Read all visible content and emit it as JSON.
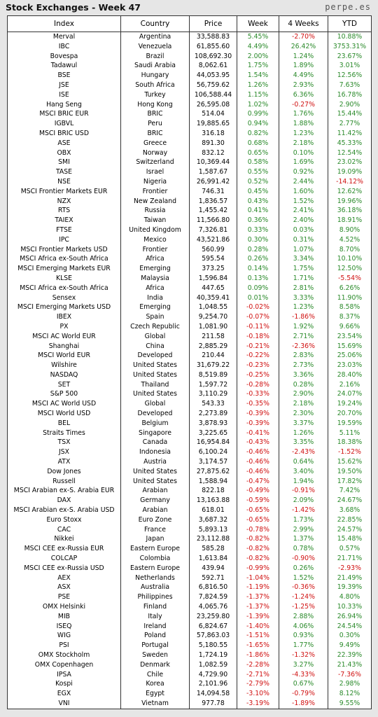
{
  "header": {
    "title": "Stock Exchanges - Week 47",
    "site": "perpe.es"
  },
  "table": {
    "columns": [
      "Index",
      "Country",
      "Price",
      "Week",
      "4 Weeks",
      "YTD"
    ],
    "rows": [
      [
        "Merval",
        "Argentina",
        "33,588.83",
        "5.45%",
        "-2.70%",
        "10.88%"
      ],
      [
        "IBC",
        "Venezuela",
        "61,855.60",
        "4.49%",
        "26.42%",
        "3753.31%"
      ],
      [
        "Bovespa",
        "Brazil",
        "108,692.30",
        "2.00%",
        "1.24%",
        "23.67%"
      ],
      [
        "Tadawul",
        "Saudi Arabia",
        "8,062.61",
        "1.75%",
        "1.89%",
        "3.01%"
      ],
      [
        "BSE",
        "Hungary",
        "44,053.95",
        "1.54%",
        "4.49%",
        "12.56%"
      ],
      [
        "JSE",
        "South Africa",
        "56,759.62",
        "1.26%",
        "2.93%",
        "7.63%"
      ],
      [
        "ISE",
        "Turkey",
        "106,588.44",
        "1.15%",
        "6.36%",
        "16.78%"
      ],
      [
        "Hang Seng",
        "Hong Kong",
        "26,595.08",
        "1.02%",
        "-0.27%",
        "2.90%"
      ],
      [
        "MSCI BRIC EUR",
        "BRIC",
        "514.04",
        "0.99%",
        "1.76%",
        "15.44%"
      ],
      [
        "IGBVL",
        "Peru",
        "19,885.65",
        "0.94%",
        "1.88%",
        "2.77%"
      ],
      [
        "MSCI BRIC USD",
        "BRIC",
        "316.18",
        "0.82%",
        "1.23%",
        "11.42%"
      ],
      [
        "ASE",
        "Greece",
        "891.30",
        "0.68%",
        "2.18%",
        "45.33%"
      ],
      [
        "OBX",
        "Norway",
        "832.12",
        "0.65%",
        "0.10%",
        "12.54%"
      ],
      [
        "SMI",
        "Switzerland",
        "10,369.44",
        "0.58%",
        "1.69%",
        "23.02%"
      ],
      [
        "TASE",
        "Israel",
        "1,587.67",
        "0.55%",
        "0.92%",
        "19.09%"
      ],
      [
        "NSE",
        "Nigeria",
        "26,991.42",
        "0.52%",
        "2.44%",
        "-14.12%"
      ],
      [
        "MSCI Frontier Markets EUR",
        "Frontier",
        "746.31",
        "0.45%",
        "1.60%",
        "12.62%"
      ],
      [
        "NZX",
        "New Zealand",
        "1,836.57",
        "0.43%",
        "1.52%",
        "19.96%"
      ],
      [
        "RTS",
        "Russia",
        "1,455.42",
        "0.41%",
        "2.41%",
        "36.18%"
      ],
      [
        "TAIEX",
        "Taiwan",
        "11,566.80",
        "0.36%",
        "2.40%",
        "18.91%"
      ],
      [
        "FTSE",
        "United Kingdom",
        "7,326.81",
        "0.33%",
        "0.03%",
        "8.90%"
      ],
      [
        "IPC",
        "Mexico",
        "43,521.86",
        "0.30%",
        "0.31%",
        "4.52%"
      ],
      [
        "MSCI Frontier Markets USD",
        "Frontier",
        "560.99",
        "0.28%",
        "1.07%",
        "8.70%"
      ],
      [
        "MSCI Africa ex-South Africa",
        "Africa",
        "595.54",
        "0.26%",
        "3.34%",
        "10.10%"
      ],
      [
        "MSCI Emerging Markets EUR",
        "Emerging",
        "373.25",
        "0.14%",
        "1.75%",
        "12.50%"
      ],
      [
        "KLSE",
        "Malaysia",
        "1,596.84",
        "0.13%",
        "1.71%",
        "-5.54%"
      ],
      [
        "MSCI Africa ex-South Africa",
        "Africa",
        "447.65",
        "0.09%",
        "2.81%",
        "6.26%"
      ],
      [
        "Sensex",
        "India",
        "40,359.41",
        "0.01%",
        "3.33%",
        "11.90%"
      ],
      [
        "MSCI Emerging Markets USD",
        "Emerging",
        "1,048.55",
        "-0.02%",
        "1.23%",
        "8.58%"
      ],
      [
        "IBEX",
        "Spain",
        "9,254.70",
        "-0.07%",
        "-1.86%",
        "8.37%"
      ],
      [
        "PX",
        "Czech Republic",
        "1,081.90",
        "-0.11%",
        "1.92%",
        "9.66%"
      ],
      [
        "MSCI AC World EUR",
        "Global",
        "211.58",
        "-0.18%",
        "2.71%",
        "23.54%"
      ],
      [
        "Shanghai",
        "China",
        "2,885.29",
        "-0.21%",
        "-2.36%",
        "15.69%"
      ],
      [
        "MSCI World EUR",
        "Developed",
        "210.44",
        "-0.22%",
        "2.83%",
        "25.06%"
      ],
      [
        "Wilshire",
        "United States",
        "31,679.22",
        "-0.23%",
        "2.73%",
        "23.03%"
      ],
      [
        "NASDAQ",
        "United States",
        "8,519.89",
        "-0.25%",
        "3.36%",
        "28.40%"
      ],
      [
        "SET",
        "Thailand",
        "1,597.72",
        "-0.28%",
        "0.28%",
        "2.16%"
      ],
      [
        "S&P 500",
        "United States",
        "3,110.29",
        "-0.33%",
        "2.90%",
        "24.07%"
      ],
      [
        "MSCI AC World USD",
        "Global",
        "543.33",
        "-0.35%",
        "2.18%",
        "19.24%"
      ],
      [
        "MSCI World USD",
        "Developed",
        "2,273.89",
        "-0.39%",
        "2.30%",
        "20.70%"
      ],
      [
        "BEL",
        "Belgium",
        "3,878.93",
        "-0.39%",
        "3.37%",
        "19.59%"
      ],
      [
        "Straits Times",
        "Singapore",
        "3,225.65",
        "-0.41%",
        "1.26%",
        "5.11%"
      ],
      [
        "TSX",
        "Canada",
        "16,954.84",
        "-0.43%",
        "3.35%",
        "18.38%"
      ],
      [
        "JSX",
        "Indonesia",
        "6,100.24",
        "-0.46%",
        "-2.43%",
        "-1.52%"
      ],
      [
        "ATX",
        "Austria",
        "3,174.57",
        "-0.46%",
        "0.64%",
        "15.62%"
      ],
      [
        "Dow Jones",
        "United States",
        "27,875.62",
        "-0.46%",
        "3.40%",
        "19.50%"
      ],
      [
        "Russell",
        "United States",
        "1,588.94",
        "-0.47%",
        "1.94%",
        "17.82%"
      ],
      [
        "MSCI Arabian ex-S. Arabia EUR",
        "Arabian",
        "822.18",
        "-0.49%",
        "-0.91%",
        "7.42%"
      ],
      [
        "DAX",
        "Germany",
        "13,163.88",
        "-0.59%",
        "2.09%",
        "24.67%"
      ],
      [
        "MSCI Arabian ex-S. Arabia USD",
        "Arabian",
        "618.01",
        "-0.65%",
        "-1.42%",
        "3.68%"
      ],
      [
        "Euro Stoxx",
        "Euro Zone",
        "3,687.32",
        "-0.65%",
        "1.73%",
        "22.85%"
      ],
      [
        "CAC",
        "France",
        "5,893.13",
        "-0.78%",
        "2.99%",
        "24.57%"
      ],
      [
        "Nikkei",
        "Japan",
        "23,112.88",
        "-0.82%",
        "1.37%",
        "15.48%"
      ],
      [
        "MSCI CEE ex-Russia EUR",
        "Eastern Europe",
        "585.28",
        "-0.82%",
        "0.78%",
        "0.57%"
      ],
      [
        "COLCAP",
        "Colombia",
        "1,613.84",
        "-0.82%",
        "-0.90%",
        "21.71%"
      ],
      [
        "MSCI CEE ex-Russia USD",
        "Eastern Europe",
        "439.94",
        "-0.99%",
        "0.26%",
        "-2.93%"
      ],
      [
        "AEX",
        "Netherlands",
        "592.71",
        "-1.04%",
        "1.52%",
        "21.49%"
      ],
      [
        "ASX",
        "Australia",
        "6,816.50",
        "-1.19%",
        "-0.36%",
        "19.39%"
      ],
      [
        "PSE",
        "Philippines",
        "7,824.59",
        "-1.37%",
        "-1.24%",
        "4.80%"
      ],
      [
        "OMX Helsinki",
        "Finland",
        "4,065.76",
        "-1.37%",
        "-1.25%",
        "10.33%"
      ],
      [
        "MIB",
        "Italy",
        "23,259.80",
        "-1.39%",
        "2.88%",
        "26.94%"
      ],
      [
        "ISEQ",
        "Ireland",
        "6,824.67",
        "-1.40%",
        "4.06%",
        "24.54%"
      ],
      [
        "WIG",
        "Poland",
        "57,863.03",
        "-1.51%",
        "0.93%",
        "0.30%"
      ],
      [
        "PSI",
        "Portugal",
        "5,180.55",
        "-1.65%",
        "1.77%",
        "9.49%"
      ],
      [
        "OMX Stockholm",
        "Sweden",
        "1,724.19",
        "-1.86%",
        "-1.32%",
        "22.39%"
      ],
      [
        "OMX Copenhagen",
        "Denmark",
        "1,082.59",
        "-2.28%",
        "3.27%",
        "21.43%"
      ],
      [
        "IPSA",
        "Chile",
        "4,729.90",
        "-2.71%",
        "-4.33%",
        "-7.36%"
      ],
      [
        "Kospi",
        "Korea",
        "2,101.96",
        "-2.79%",
        "0.67%",
        "2.98%"
      ],
      [
        "EGX",
        "Egypt",
        "14,094.58",
        "-3.10%",
        "-0.79%",
        "8.12%"
      ],
      [
        "VNI",
        "Vietnam",
        "977.78",
        "-3.19%",
        "-1.89%",
        "9.55%"
      ]
    ]
  }
}
